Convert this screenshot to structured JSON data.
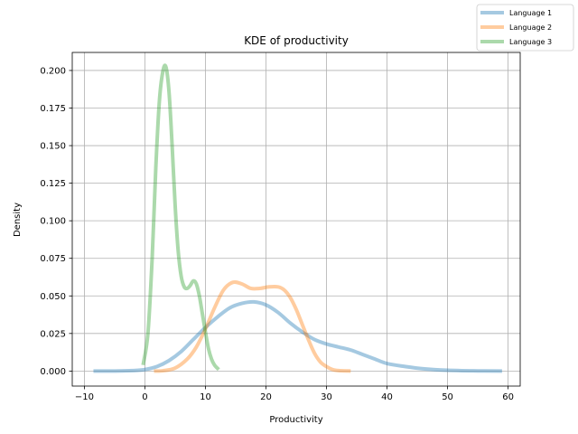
{
  "chart_data": {
    "type": "line",
    "title": "KDE of productivity",
    "xlabel": "Productivity",
    "ylabel": "Density",
    "xlim": [
      -12,
      62
    ],
    "ylim": [
      -0.01,
      0.212
    ],
    "xticks": [
      -10,
      0,
      10,
      20,
      30,
      40,
      50,
      60
    ],
    "xtick_labels": [
      "−10",
      "0",
      "10",
      "20",
      "30",
      "40",
      "50",
      "60"
    ],
    "yticks": [
      0.0,
      0.025,
      0.05,
      0.075,
      0.1,
      0.125,
      0.15,
      0.175,
      0.2
    ],
    "ytick_labels": [
      "0.000",
      "0.025",
      "0.050",
      "0.075",
      "0.100",
      "0.125",
      "0.150",
      "0.175",
      "0.200"
    ],
    "grid": true,
    "legend_position": "top-right",
    "series": [
      {
        "name": "Language 1",
        "color": "#1f77b4",
        "x": [
          -8.5,
          -5,
          -2,
          0,
          2,
          4,
          6,
          8,
          10,
          12,
          14,
          16,
          18,
          20,
          22,
          24,
          26,
          28,
          30,
          32,
          34,
          36,
          38,
          40,
          43,
          46,
          50,
          55,
          59
        ],
        "y": [
          0.0,
          0.0,
          0.0003,
          0.001,
          0.003,
          0.007,
          0.013,
          0.021,
          0.029,
          0.036,
          0.042,
          0.045,
          0.046,
          0.044,
          0.039,
          0.032,
          0.026,
          0.021,
          0.018,
          0.016,
          0.014,
          0.011,
          0.008,
          0.005,
          0.003,
          0.0015,
          0.0005,
          0.0001,
          0.0
        ]
      },
      {
        "name": "Language 2",
        "color": "#ff7f0e",
        "x": [
          1.5,
          3,
          5,
          7,
          8.5,
          10,
          11.5,
          13,
          14.5,
          16,
          17.5,
          19,
          20.5,
          22,
          23,
          24,
          25,
          26,
          27,
          28,
          29,
          30,
          31,
          32,
          34
        ],
        "y": [
          0.0,
          0.0002,
          0.002,
          0.008,
          0.016,
          0.028,
          0.042,
          0.054,
          0.059,
          0.058,
          0.055,
          0.055,
          0.056,
          0.056,
          0.054,
          0.049,
          0.041,
          0.031,
          0.021,
          0.012,
          0.006,
          0.003,
          0.001,
          0.0003,
          0.0
        ]
      },
      {
        "name": "Language 3",
        "color": "#2ca02c",
        "x": [
          -0.3,
          0.5,
          1.2,
          1.8,
          2.4,
          3.0,
          3.5,
          4.0,
          4.5,
          5.0,
          5.5,
          6.0,
          6.5,
          7.0,
          7.5,
          8.0,
          8.5,
          9.0,
          9.5,
          10.0,
          10.5,
          11.0,
          11.5,
          12.2
        ],
        "y": [
          0.004,
          0.025,
          0.075,
          0.135,
          0.18,
          0.2,
          0.202,
          0.185,
          0.15,
          0.11,
          0.08,
          0.063,
          0.056,
          0.055,
          0.057,
          0.06,
          0.058,
          0.05,
          0.038,
          0.026,
          0.015,
          0.008,
          0.004,
          0.001
        ]
      }
    ]
  }
}
